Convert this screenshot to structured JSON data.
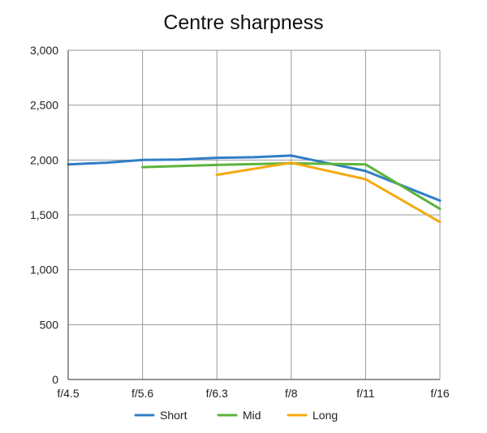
{
  "chart_data": {
    "type": "line",
    "title": "Centre sharpness",
    "xlabel": "",
    "ylabel": "",
    "categories": [
      "f/4.5",
      "f/5.6",
      "f/6.3",
      "f/8",
      "f/11",
      "f/16"
    ],
    "y_ticks": [
      "0",
      "500",
      "1,000",
      "1,500",
      "2,000",
      "2,500",
      "3,000"
    ],
    "ylim": [
      0,
      3000
    ],
    "grid": true,
    "legend_position": "bottom",
    "series": [
      {
        "name": "Short",
        "color": "#2f7ec6",
        "points": [
          [
            0,
            1960
          ],
          [
            0.5,
            1975
          ],
          [
            1,
            2000
          ],
          [
            1.5,
            2005
          ],
          [
            2,
            2020
          ],
          [
            2.5,
            2025
          ],
          [
            3,
            2040
          ],
          [
            4,
            1900
          ],
          [
            5,
            1630
          ]
        ]
      },
      {
        "name": "Mid",
        "color": "#5db33a",
        "points": [
          [
            1,
            1935
          ],
          [
            2,
            1955
          ],
          [
            3,
            1970
          ],
          [
            4,
            1960
          ],
          [
            5,
            1555
          ]
        ]
      },
      {
        "name": "Long",
        "color": "#f5a90f",
        "points": [
          [
            2,
            1865
          ],
          [
            3,
            1975
          ],
          [
            4,
            1825
          ],
          [
            5,
            1435
          ]
        ]
      }
    ]
  }
}
